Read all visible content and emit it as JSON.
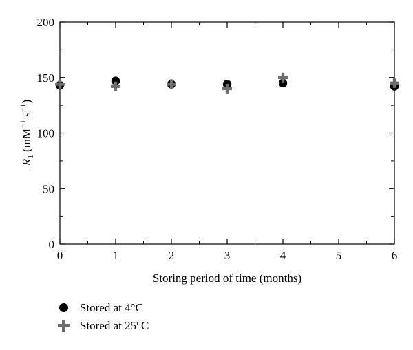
{
  "chart_data": {
    "type": "scatter",
    "title": "",
    "xlabel": "Storing period of time (months)",
    "ylabel_main": "R",
    "ylabel_sub": "1",
    "ylabel_units_pre": "(mM",
    "ylabel_units_sup1": "−1",
    "ylabel_units_mid": " s",
    "ylabel_units_sup2": "−1",
    "ylabel_units_post": ")",
    "xlim": [
      0,
      6
    ],
    "ylim": [
      0,
      200
    ],
    "x_ticks": [
      "0",
      "1",
      "2",
      "3",
      "4",
      "5",
      "6"
    ],
    "y_ticks": [
      "0",
      "50",
      "100",
      "150",
      "200"
    ],
    "grid": false,
    "legend_position": "bottom-left",
    "series": [
      {
        "name": "Stored at 4°C",
        "marker": "circle",
        "color": "#000000",
        "x": [
          0,
          1,
          2,
          3,
          4,
          6
        ],
        "y": [
          143,
          147,
          144,
          144,
          145,
          142
        ]
      },
      {
        "name": "Stored at 25°C",
        "marker": "plus",
        "color": "#6e6e6e",
        "x": [
          0,
          1,
          2,
          3,
          4,
          6
        ],
        "y": [
          144,
          142,
          144,
          140,
          150,
          145
        ]
      }
    ]
  },
  "legend": {
    "items": [
      {
        "label": "Stored at 4°C"
      },
      {
        "label": "Stored at 25°C"
      }
    ]
  }
}
